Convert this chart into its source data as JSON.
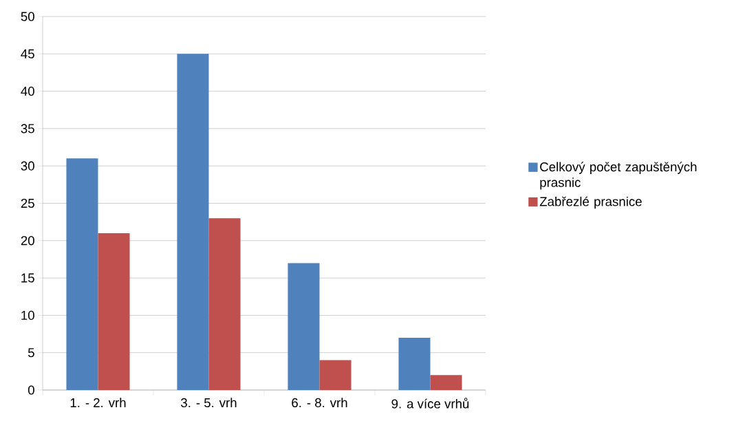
{
  "chart_data": {
    "type": "bar",
    "categories": [
      "1. - 2. vrh",
      "3. - 5. vrh",
      "6. - 8. vrh",
      "9. a více vrhů"
    ],
    "series": [
      {
        "name": "Celkový počet zapuštěných prasnic",
        "color": "#4f81bd",
        "values": [
          31,
          45,
          17,
          7
        ]
      },
      {
        "name": "Zabřezlé prasnice",
        "color": "#c0504d",
        "values": [
          21,
          23,
          4,
          2
        ]
      }
    ],
    "ylim": [
      0,
      50
    ],
    "yticks": [
      0,
      5,
      10,
      15,
      20,
      25,
      30,
      35,
      40,
      45,
      50
    ],
    "grid": "y",
    "legend": "right"
  }
}
